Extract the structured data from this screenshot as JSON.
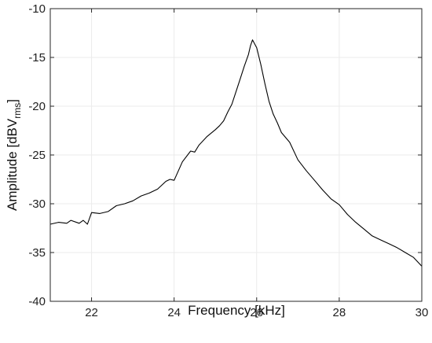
{
  "chart_data": {
    "type": "line",
    "title": "",
    "xlabel": "Frequency [kHz]",
    "ylabel_main": "Amplitude [dBV",
    "ylabel_sub": "rms",
    "ylabel_end": "]",
    "xlim": [
      21,
      30
    ],
    "ylim": [
      -40,
      -10
    ],
    "xticks": [
      22,
      24,
      26,
      28,
      30
    ],
    "xtick_labels": [
      "22",
      "24",
      "26",
      "28",
      "30"
    ],
    "yticks": [
      -40,
      -35,
      -30,
      -25,
      -20,
      -15,
      -10
    ],
    "ytick_labels": [
      "-40",
      "-35",
      "-30",
      "-25",
      "-20",
      "-15",
      "-10"
    ],
    "grid": true,
    "line_color": "#000000",
    "series": [
      {
        "x": [
          21.0,
          21.2,
          21.4,
          21.5,
          21.7,
          21.8,
          21.9,
          22.0,
          22.2,
          22.4,
          22.6,
          22.8,
          23.0,
          23.2,
          23.4,
          23.6,
          23.8,
          23.9,
          24.0,
          24.2,
          24.4,
          24.5,
          24.6,
          24.8,
          25.0,
          25.1,
          25.2,
          25.3,
          25.4,
          25.5,
          25.6,
          25.7,
          25.8,
          25.85,
          25.9,
          26.0,
          26.1,
          26.2,
          26.3,
          26.4,
          26.5,
          26.6,
          26.8,
          27.0,
          27.2,
          27.4,
          27.6,
          27.8,
          28.0,
          28.2,
          28.4,
          28.6,
          28.8,
          29.0,
          29.2,
          29.4,
          29.6,
          29.8,
          30.0
        ],
        "y": [
          -32.1,
          -31.9,
          -32.0,
          -31.7,
          -32.0,
          -31.7,
          -32.1,
          -30.9,
          -31.0,
          -30.8,
          -30.2,
          -30.0,
          -29.7,
          -29.2,
          -28.9,
          -28.5,
          -27.7,
          -27.5,
          -27.6,
          -25.7,
          -24.6,
          -24.7,
          -24.0,
          -23.1,
          -22.4,
          -22.0,
          -21.5,
          -20.6,
          -19.8,
          -18.5,
          -17.2,
          -15.9,
          -14.7,
          -13.8,
          -13.2,
          -14.0,
          -15.7,
          -17.7,
          -19.5,
          -20.8,
          -21.7,
          -22.7,
          -23.7,
          -25.5,
          -26.6,
          -27.6,
          -28.6,
          -29.5,
          -30.1,
          -31.1,
          -31.9,
          -32.6,
          -33.3,
          -33.7,
          -34.1,
          -34.5,
          -35.0,
          -35.5,
          -36.4
        ]
      }
    ]
  }
}
